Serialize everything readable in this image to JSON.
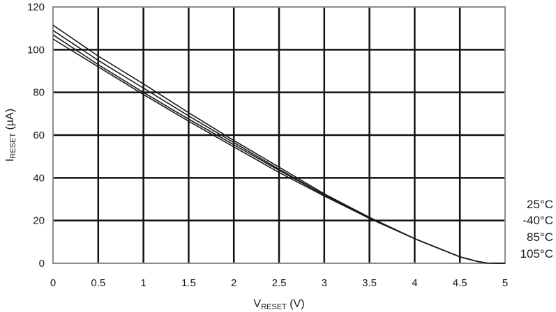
{
  "chart_data": {
    "type": "line",
    "title": "",
    "xlabel": {
      "main": "V",
      "sub": "RESET",
      "unit": " (V)"
    },
    "ylabel": {
      "main": "I",
      "sub": "RESET",
      "unit": " (µA)"
    },
    "xlim": [
      0,
      5
    ],
    "ylim": [
      0,
      120
    ],
    "x_ticks": [
      "0",
      "0.5",
      "1",
      "1.5",
      "2",
      "2.5",
      "3",
      "3.5",
      "4",
      "4.5",
      "5"
    ],
    "y_ticks": [
      "0",
      "20",
      "40",
      "60",
      "80",
      "100",
      "120"
    ],
    "grid": true,
    "legend_position": "right-bottom",
    "line_color": "#1a1a1a",
    "grid_color": "#111111",
    "frame_color": "#8c8c8c",
    "series": [
      {
        "name": "25°C",
        "x": [
          0,
          0.5,
          1,
          1.5,
          2,
          2.5,
          3,
          3.5,
          4,
          4.5,
          4.7,
          4.8,
          5
        ],
        "y": [
          111.5,
          97,
          84,
          70.5,
          57.5,
          45,
          32.5,
          21.5,
          11.5,
          3.0,
          0.8,
          0.1,
          0
        ]
      },
      {
        "name": "-40°C",
        "x": [
          0,
          0.5,
          1,
          1.5,
          2,
          2.5,
          3,
          3.5,
          4,
          4.5,
          4.7,
          4.8,
          5
        ],
        "y": [
          109,
          95,
          82,
          69,
          56.5,
          44,
          32,
          21.5,
          11.5,
          3.0,
          0.8,
          0.1,
          0
        ]
      },
      {
        "name": "85°C",
        "x": [
          0,
          0.5,
          1,
          1.5,
          2,
          2.5,
          3,
          3.5,
          4,
          4.5,
          4.7,
          4.8,
          5
        ],
        "y": [
          107,
          93,
          80,
          67.5,
          55.5,
          43.5,
          32,
          21,
          11.5,
          3.0,
          0.8,
          0.1,
          0
        ]
      },
      {
        "name": "105°C",
        "x": [
          0,
          0.5,
          1,
          1.5,
          2,
          2.5,
          3,
          3.5,
          4,
          4.5,
          4.7,
          4.8,
          5
        ],
        "y": [
          105,
          92,
          79,
          66.5,
          54.5,
          42.5,
          31.5,
          21,
          11.5,
          3.0,
          0.8,
          0.1,
          0
        ]
      }
    ]
  }
}
